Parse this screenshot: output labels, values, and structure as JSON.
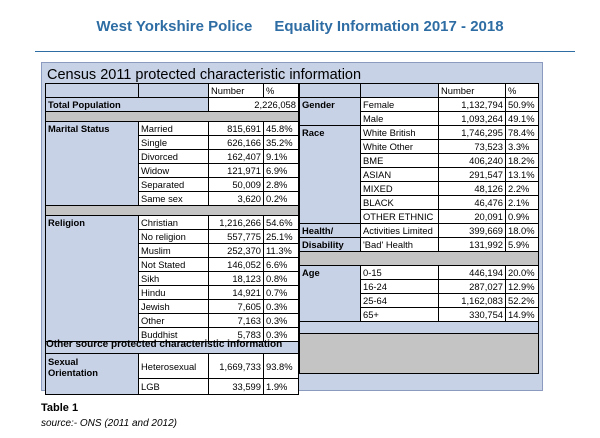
{
  "header": {
    "org": "West Yorkshire Police",
    "doc": "Equality Information 2017 - 2018"
  },
  "table_title": "Census 2011 protected characteristic information",
  "col_headers": {
    "number": "Number",
    "percent": "%"
  },
  "total": {
    "label": "Total Population",
    "value": "2,226,058"
  },
  "marital": {
    "label": "Marital Status",
    "rows": [
      {
        "name": "Married",
        "num": "815,691",
        "pct": "45.8%"
      },
      {
        "name": "Single",
        "num": "626,166",
        "pct": "35.2%"
      },
      {
        "name": "Divorced",
        "num": "162,407",
        "pct": "9.1%"
      },
      {
        "name": "Widow",
        "num": "121,971",
        "pct": "6.9%"
      },
      {
        "name": "Separated",
        "num": "50,009",
        "pct": "2.8%"
      },
      {
        "name": "Same sex",
        "num": "3,620",
        "pct": "0.2%"
      }
    ]
  },
  "religion": {
    "label": "Religion",
    "rows": [
      {
        "name": "Christian",
        "num": "1,216,266",
        "pct": "54.6%"
      },
      {
        "name": "No religion",
        "num": "557,775",
        "pct": "25.1%"
      },
      {
        "name": "Muslim",
        "num": "252,370",
        "pct": "11.3%"
      },
      {
        "name": "Not Stated",
        "num": "146,052",
        "pct": "6.6%"
      },
      {
        "name": "Sikh",
        "num": "18,123",
        "pct": "0.8%"
      },
      {
        "name": "Hindu",
        "num": "14,921",
        "pct": "0.7%"
      },
      {
        "name": "Jewish",
        "num": "7,605",
        "pct": "0.3%"
      },
      {
        "name": "Other",
        "num": "7,163",
        "pct": "0.3%"
      },
      {
        "name": "Buddhist",
        "num": "5,783",
        "pct": "0.3%"
      }
    ]
  },
  "gender": {
    "label": "Gender",
    "rows": [
      {
        "name": "Female",
        "num": "1,132,794",
        "pct": "50.9%"
      },
      {
        "name": "Male",
        "num": "1,093,264",
        "pct": "49.1%"
      }
    ]
  },
  "race": {
    "label": "Race",
    "rows": [
      {
        "name": "White British",
        "num": "1,746,295",
        "pct": "78.4%"
      },
      {
        "name": "White Other",
        "num": "73,523",
        "pct": "3.3%"
      },
      {
        "name": "BME",
        "num": "406,240",
        "pct": "18.2%"
      },
      {
        "name": "ASIAN",
        "num": "291,547",
        "pct": "13.1%"
      },
      {
        "name": "MIXED",
        "num": "48,126",
        "pct": "2.2%"
      },
      {
        "name": "BLACK",
        "num": "46,476",
        "pct": "2.1%"
      },
      {
        "name": "OTHER ETHNIC",
        "num": "20,091",
        "pct": "0.9%"
      }
    ]
  },
  "health": {
    "label1": "Health/",
    "label2": "Disability",
    "rows": [
      {
        "name": "Activities Limited",
        "num": "399,669",
        "pct": "18.0%"
      },
      {
        "name": "'Bad' Health",
        "num": "131,992",
        "pct": "5.9%"
      }
    ]
  },
  "age": {
    "label": "Age",
    "rows": [
      {
        "name": "0-15",
        "num": "446,194",
        "pct": "20.0%"
      },
      {
        "name": "16-24",
        "num": "287,027",
        "pct": "12.9%"
      },
      {
        "name": "25-64",
        "num": "1,162,083",
        "pct": "52.2%"
      },
      {
        "name": "65+",
        "num": "330,754",
        "pct": "14.9%"
      }
    ]
  },
  "other_source": "Other source protected characteristic information",
  "sexual": {
    "label1": "Sexual",
    "label2": "Orientation",
    "rows": [
      {
        "name": "Heterosexual",
        "num": "1,669,733",
        "pct": "93.8%"
      },
      {
        "name": "LGB",
        "num": "33,599",
        "pct": "1.9%"
      }
    ]
  },
  "caption": "Table 1",
  "source": "source:- ONS (2011 and 2012)"
}
